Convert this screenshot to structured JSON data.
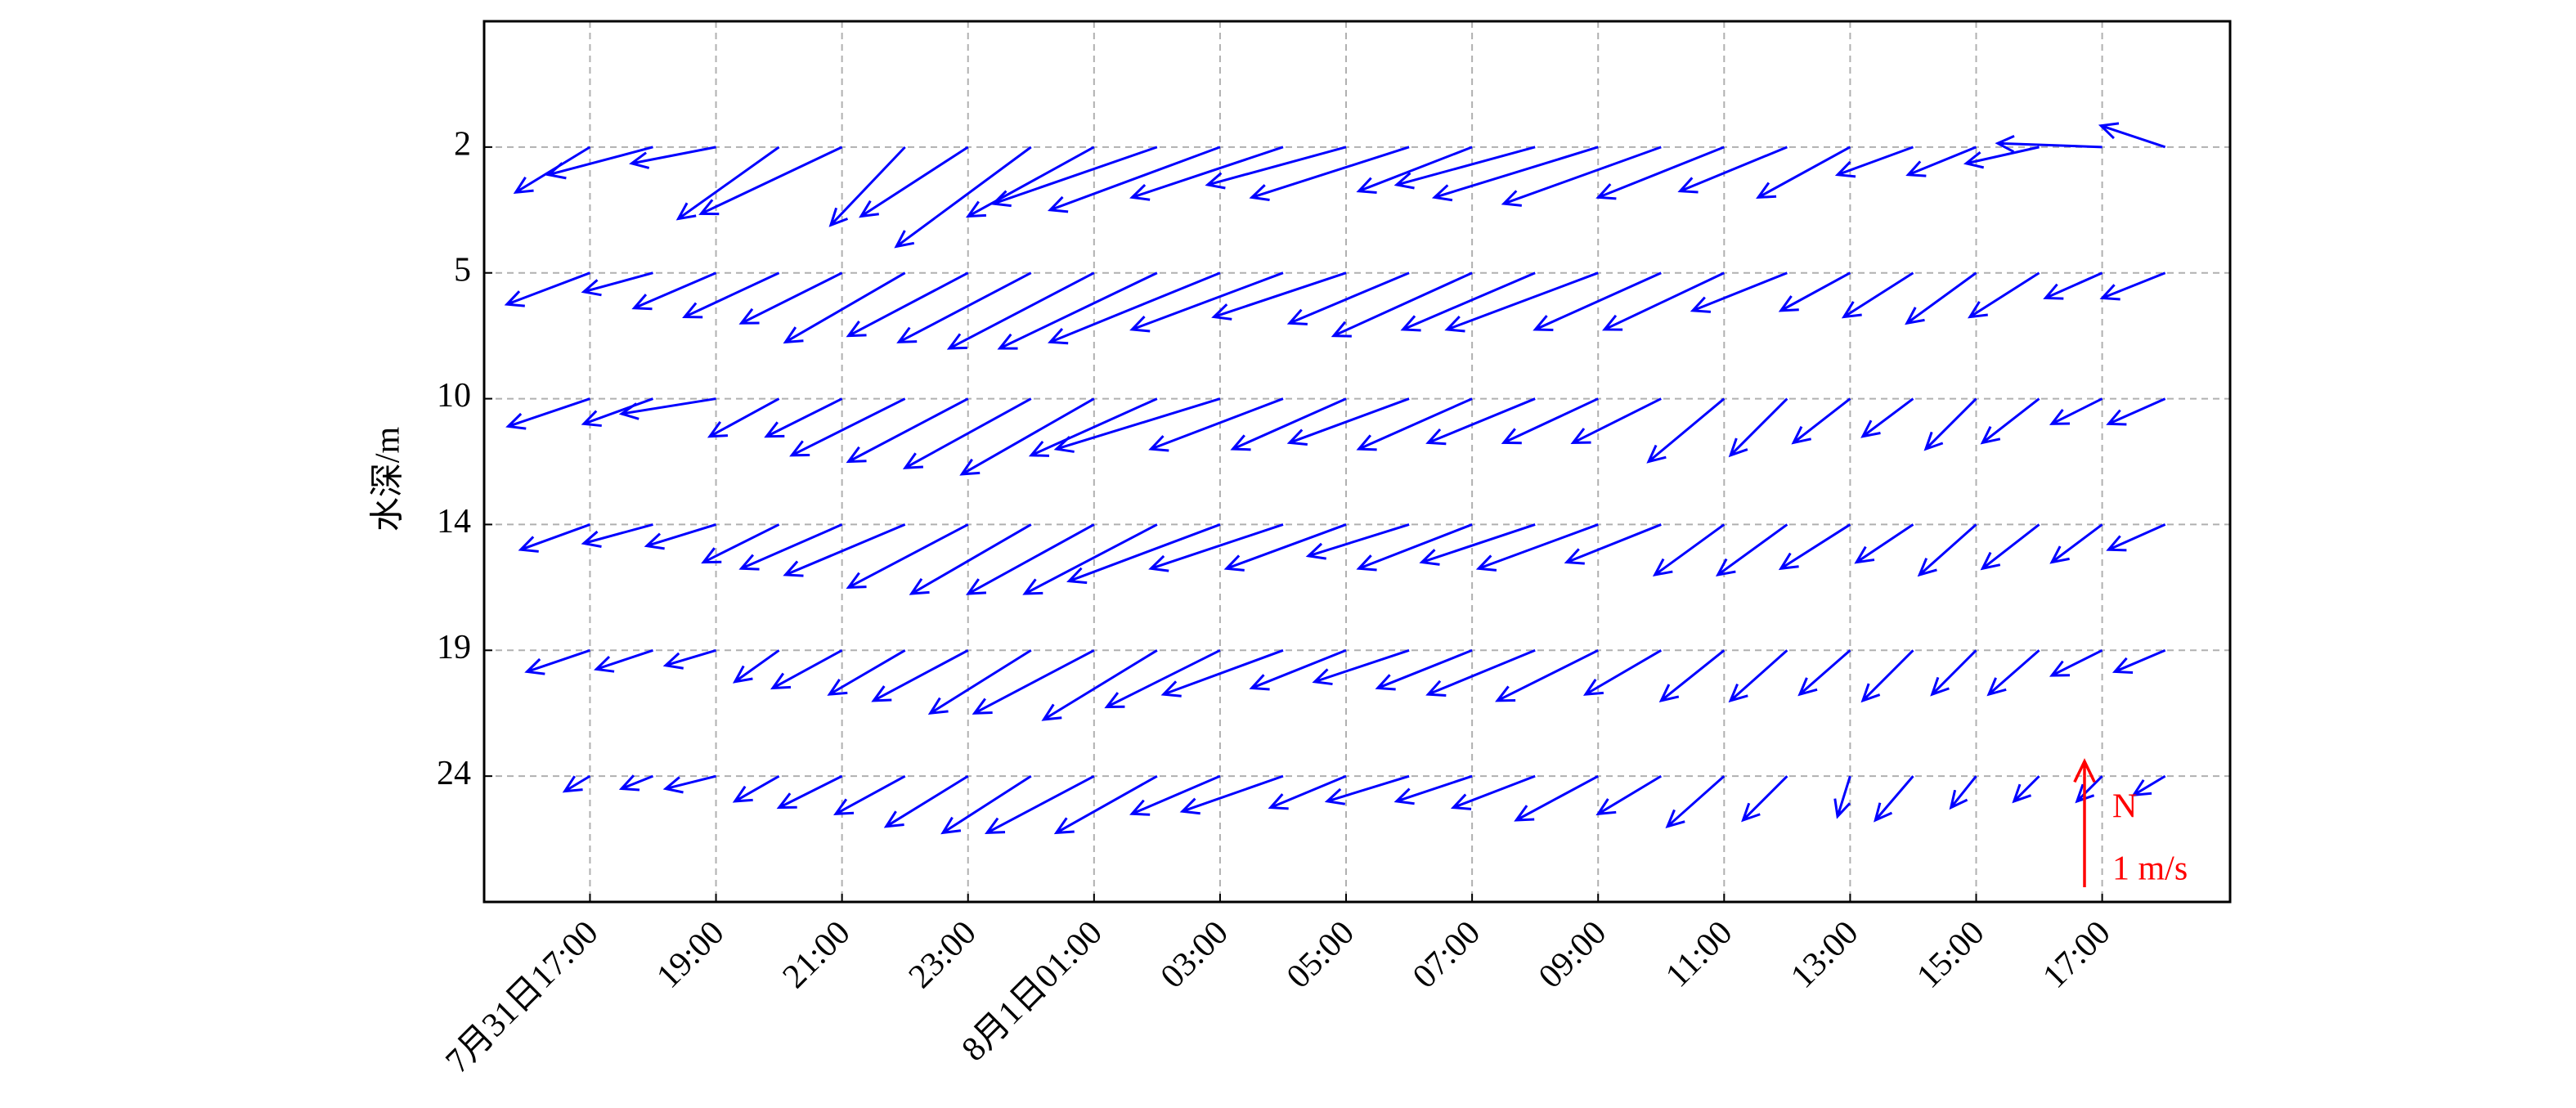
{
  "chart_data": {
    "type": "quiver",
    "y_label": "水深/m",
    "x": [
      17,
      18,
      19,
      20,
      21,
      22,
      23,
      24,
      25,
      26,
      27,
      28,
      29,
      30,
      31,
      32,
      33,
      34,
      35,
      36,
      37,
      38,
      39,
      40,
      41,
      42
    ],
    "xlim": [
      15.32,
      43.03
    ],
    "xticks": [
      {
        "value": 17,
        "label": "7月31日17:00"
      },
      {
        "value": 19,
        "label": "19:00"
      },
      {
        "value": 21,
        "label": "21:00"
      },
      {
        "value": 23,
        "label": "23:00"
      },
      {
        "value": 25,
        "label": "8月1日01:00"
      },
      {
        "value": 27,
        "label": "03:00"
      },
      {
        "value": 29,
        "label": "05:00"
      },
      {
        "value": 31,
        "label": "07:00"
      },
      {
        "value": 33,
        "label": "09:00"
      },
      {
        "value": 35,
        "label": "11:00"
      },
      {
        "value": 37,
        "label": "13:00"
      },
      {
        "value": 39,
        "label": "15:00"
      },
      {
        "value": 41,
        "label": "17:00"
      }
    ],
    "grid": true,
    "color": "#0000ff",
    "series": [
      {
        "depth": 2,
        "u": [
          -0.59,
          -0.83,
          -0.67,
          -0.8,
          -1.12,
          -0.59,
          -0.85,
          -1.07,
          -1.0,
          -1.3,
          -1.35,
          -1.2,
          -1.1,
          -1.25,
          -0.9,
          -1.1,
          -1.3,
          -1.25,
          -1.0,
          -0.85,
          -0.73,
          -0.6,
          -0.54,
          -0.58,
          -0.83,
          -0.51
        ],
        "v": [
          -0.36,
          -0.22,
          -0.13,
          -0.57,
          -0.53,
          -0.62,
          -0.55,
          -0.79,
          -0.55,
          -0.45,
          -0.5,
          -0.4,
          -0.3,
          -0.4,
          -0.35,
          -0.3,
          -0.4,
          -0.45,
          -0.4,
          -0.35,
          -0.4,
          -0.22,
          -0.22,
          -0.13,
          0.03,
          0.17
        ]
      },
      {
        "depth": 5,
        "u": [
          -0.66,
          -0.55,
          -0.65,
          -0.75,
          -0.8,
          -0.95,
          -0.95,
          -1.05,
          -1.15,
          -1.25,
          -1.35,
          -1.2,
          -1.05,
          -0.95,
          -1.1,
          -1.05,
          -1.2,
          -1.0,
          -0.95,
          -0.75,
          -0.55,
          -0.55,
          -0.55,
          -0.55,
          -0.45,
          -0.5
        ],
        "v": [
          -0.25,
          -0.15,
          -0.28,
          -0.35,
          -0.4,
          -0.55,
          -0.5,
          -0.55,
          -0.6,
          -0.6,
          -0.55,
          -0.45,
          -0.35,
          -0.4,
          -0.5,
          -0.45,
          -0.45,
          -0.45,
          -0.45,
          -0.3,
          -0.3,
          -0.35,
          -0.4,
          -0.35,
          -0.2,
          -0.2
        ]
      },
      {
        "depth": 10,
        "u": [
          -0.65,
          -0.55,
          -0.75,
          -0.55,
          -0.6,
          -0.9,
          -0.95,
          -1.0,
          -1.05,
          -1.0,
          -1.3,
          -1.05,
          -0.9,
          -0.95,
          -0.9,
          -0.85,
          -0.75,
          -0.7,
          -0.6,
          -0.45,
          -0.45,
          -0.4,
          -0.4,
          -0.45,
          -0.4,
          -0.45
        ],
        "v": [
          -0.22,
          -0.2,
          -0.12,
          -0.3,
          -0.3,
          -0.45,
          -0.5,
          -0.55,
          -0.6,
          -0.45,
          -0.4,
          -0.4,
          -0.4,
          -0.35,
          -0.4,
          -0.35,
          -0.35,
          -0.35,
          -0.5,
          -0.45,
          -0.35,
          -0.3,
          -0.4,
          -0.35,
          -0.2,
          -0.2
        ]
      },
      {
        "depth": 14,
        "u": [
          -0.55,
          -0.55,
          -0.55,
          -0.6,
          -0.8,
          -0.95,
          -0.95,
          -0.95,
          -1.0,
          -1.05,
          -1.2,
          -1.05,
          -0.95,
          -0.8,
          -0.9,
          -0.9,
          -0.95,
          -0.75,
          -0.55,
          -0.55,
          -0.55,
          -0.45,
          -0.45,
          -0.45,
          -0.4,
          -0.45
        ],
        "v": [
          -0.2,
          -0.15,
          -0.17,
          -0.3,
          -0.35,
          -0.4,
          -0.5,
          -0.55,
          -0.55,
          -0.55,
          -0.45,
          -0.35,
          -0.35,
          -0.25,
          -0.35,
          -0.3,
          -0.35,
          -0.3,
          -0.4,
          -0.4,
          -0.35,
          -0.3,
          -0.4,
          -0.35,
          -0.3,
          -0.2
        ]
      },
      {
        "depth": 19,
        "u": [
          -0.5,
          -0.45,
          -0.4,
          -0.35,
          -0.55,
          -0.6,
          -0.75,
          -0.8,
          -0.95,
          -0.9,
          -0.9,
          -0.95,
          -0.75,
          -0.75,
          -0.75,
          -0.85,
          -0.8,
          -0.6,
          -0.5,
          -0.45,
          -0.4,
          -0.4,
          -0.35,
          -0.4,
          -0.4,
          -0.4
        ],
        "v": [
          -0.17,
          -0.15,
          -0.12,
          -0.25,
          -0.3,
          -0.35,
          -0.4,
          -0.5,
          -0.5,
          -0.55,
          -0.45,
          -0.35,
          -0.3,
          -0.25,
          -0.3,
          -0.35,
          -0.4,
          -0.35,
          -0.4,
          -0.4,
          -0.35,
          -0.4,
          -0.35,
          -0.35,
          -0.2,
          -0.17
        ]
      },
      {
        "depth": 24,
        "u": [
          -0.2,
          -0.25,
          -0.4,
          -0.35,
          -0.5,
          -0.55,
          -0.65,
          -0.7,
          -0.85,
          -0.8,
          -0.7,
          -0.8,
          -0.6,
          -0.65,
          -0.6,
          -0.65,
          -0.65,
          -0.5,
          -0.45,
          -0.35,
          -0.1,
          -0.3,
          -0.2,
          -0.2,
          -0.2,
          -0.25
        ],
        "v": [
          -0.12,
          -0.1,
          -0.1,
          -0.2,
          -0.25,
          -0.3,
          -0.4,
          -0.45,
          -0.45,
          -0.45,
          -0.3,
          -0.28,
          -0.25,
          -0.2,
          -0.2,
          -0.25,
          -0.35,
          -0.3,
          -0.4,
          -0.35,
          -0.32,
          -0.35,
          -0.25,
          -0.2,
          -0.2,
          -0.15
        ]
      }
    ],
    "key": {
      "value": 1,
      "label": "1 m/s",
      "north": "N",
      "color": "#ff0000"
    }
  }
}
